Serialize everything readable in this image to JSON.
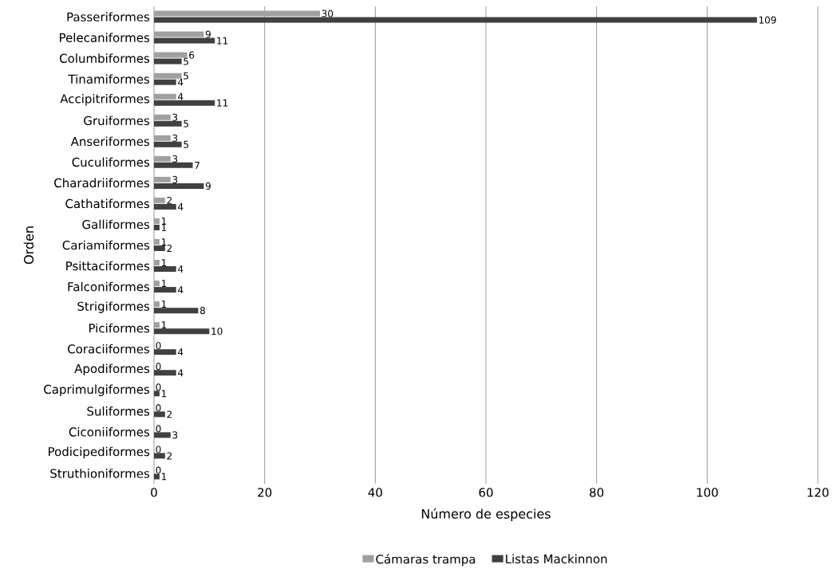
{
  "chart_data": {
    "type": "bar",
    "orientation": "horizontal",
    "xlabel": "Número de especies",
    "ylabel": "Orden",
    "categories": [
      "Passeriformes",
      "Pelecaniformes",
      "Columbiformes",
      "Tinamiformes",
      "Accipitriformes",
      "Gruiformes",
      "Anseriformes",
      "Cuculiformes",
      "Charadriiformes",
      "Cathatiformes",
      "Galliformes",
      "Cariamiformes",
      "Psittaciformes",
      "Falconiformes",
      "Strigiformes",
      "Piciformes",
      "Coraciiformes",
      "Apodiformes",
      "Caprimulgiformes",
      "Suliformes",
      "Ciconiiformes",
      "Podicipediformes",
      "Struthioniformes"
    ],
    "series": [
      {
        "name": "Cámaras trampa",
        "color": "#a0a0a0",
        "values": [
          30,
          9,
          6,
          5,
          4,
          3,
          3,
          3,
          3,
          2,
          1,
          1,
          1,
          1,
          1,
          1,
          0,
          0,
          0,
          0,
          0,
          0,
          0
        ]
      },
      {
        "name": "Listas Mackinnon",
        "color": "#404040",
        "values": [
          109,
          11,
          5,
          4,
          11,
          5,
          5,
          7,
          9,
          4,
          1,
          2,
          4,
          4,
          8,
          10,
          4,
          4,
          1,
          2,
          3,
          2,
          1
        ]
      }
    ],
    "xlim": [
      0,
      120
    ],
    "xticks": [
      0,
      20,
      40,
      60,
      80,
      100,
      120
    ],
    "grid": "x",
    "legend": "bottom",
    "data_labels": true
  }
}
